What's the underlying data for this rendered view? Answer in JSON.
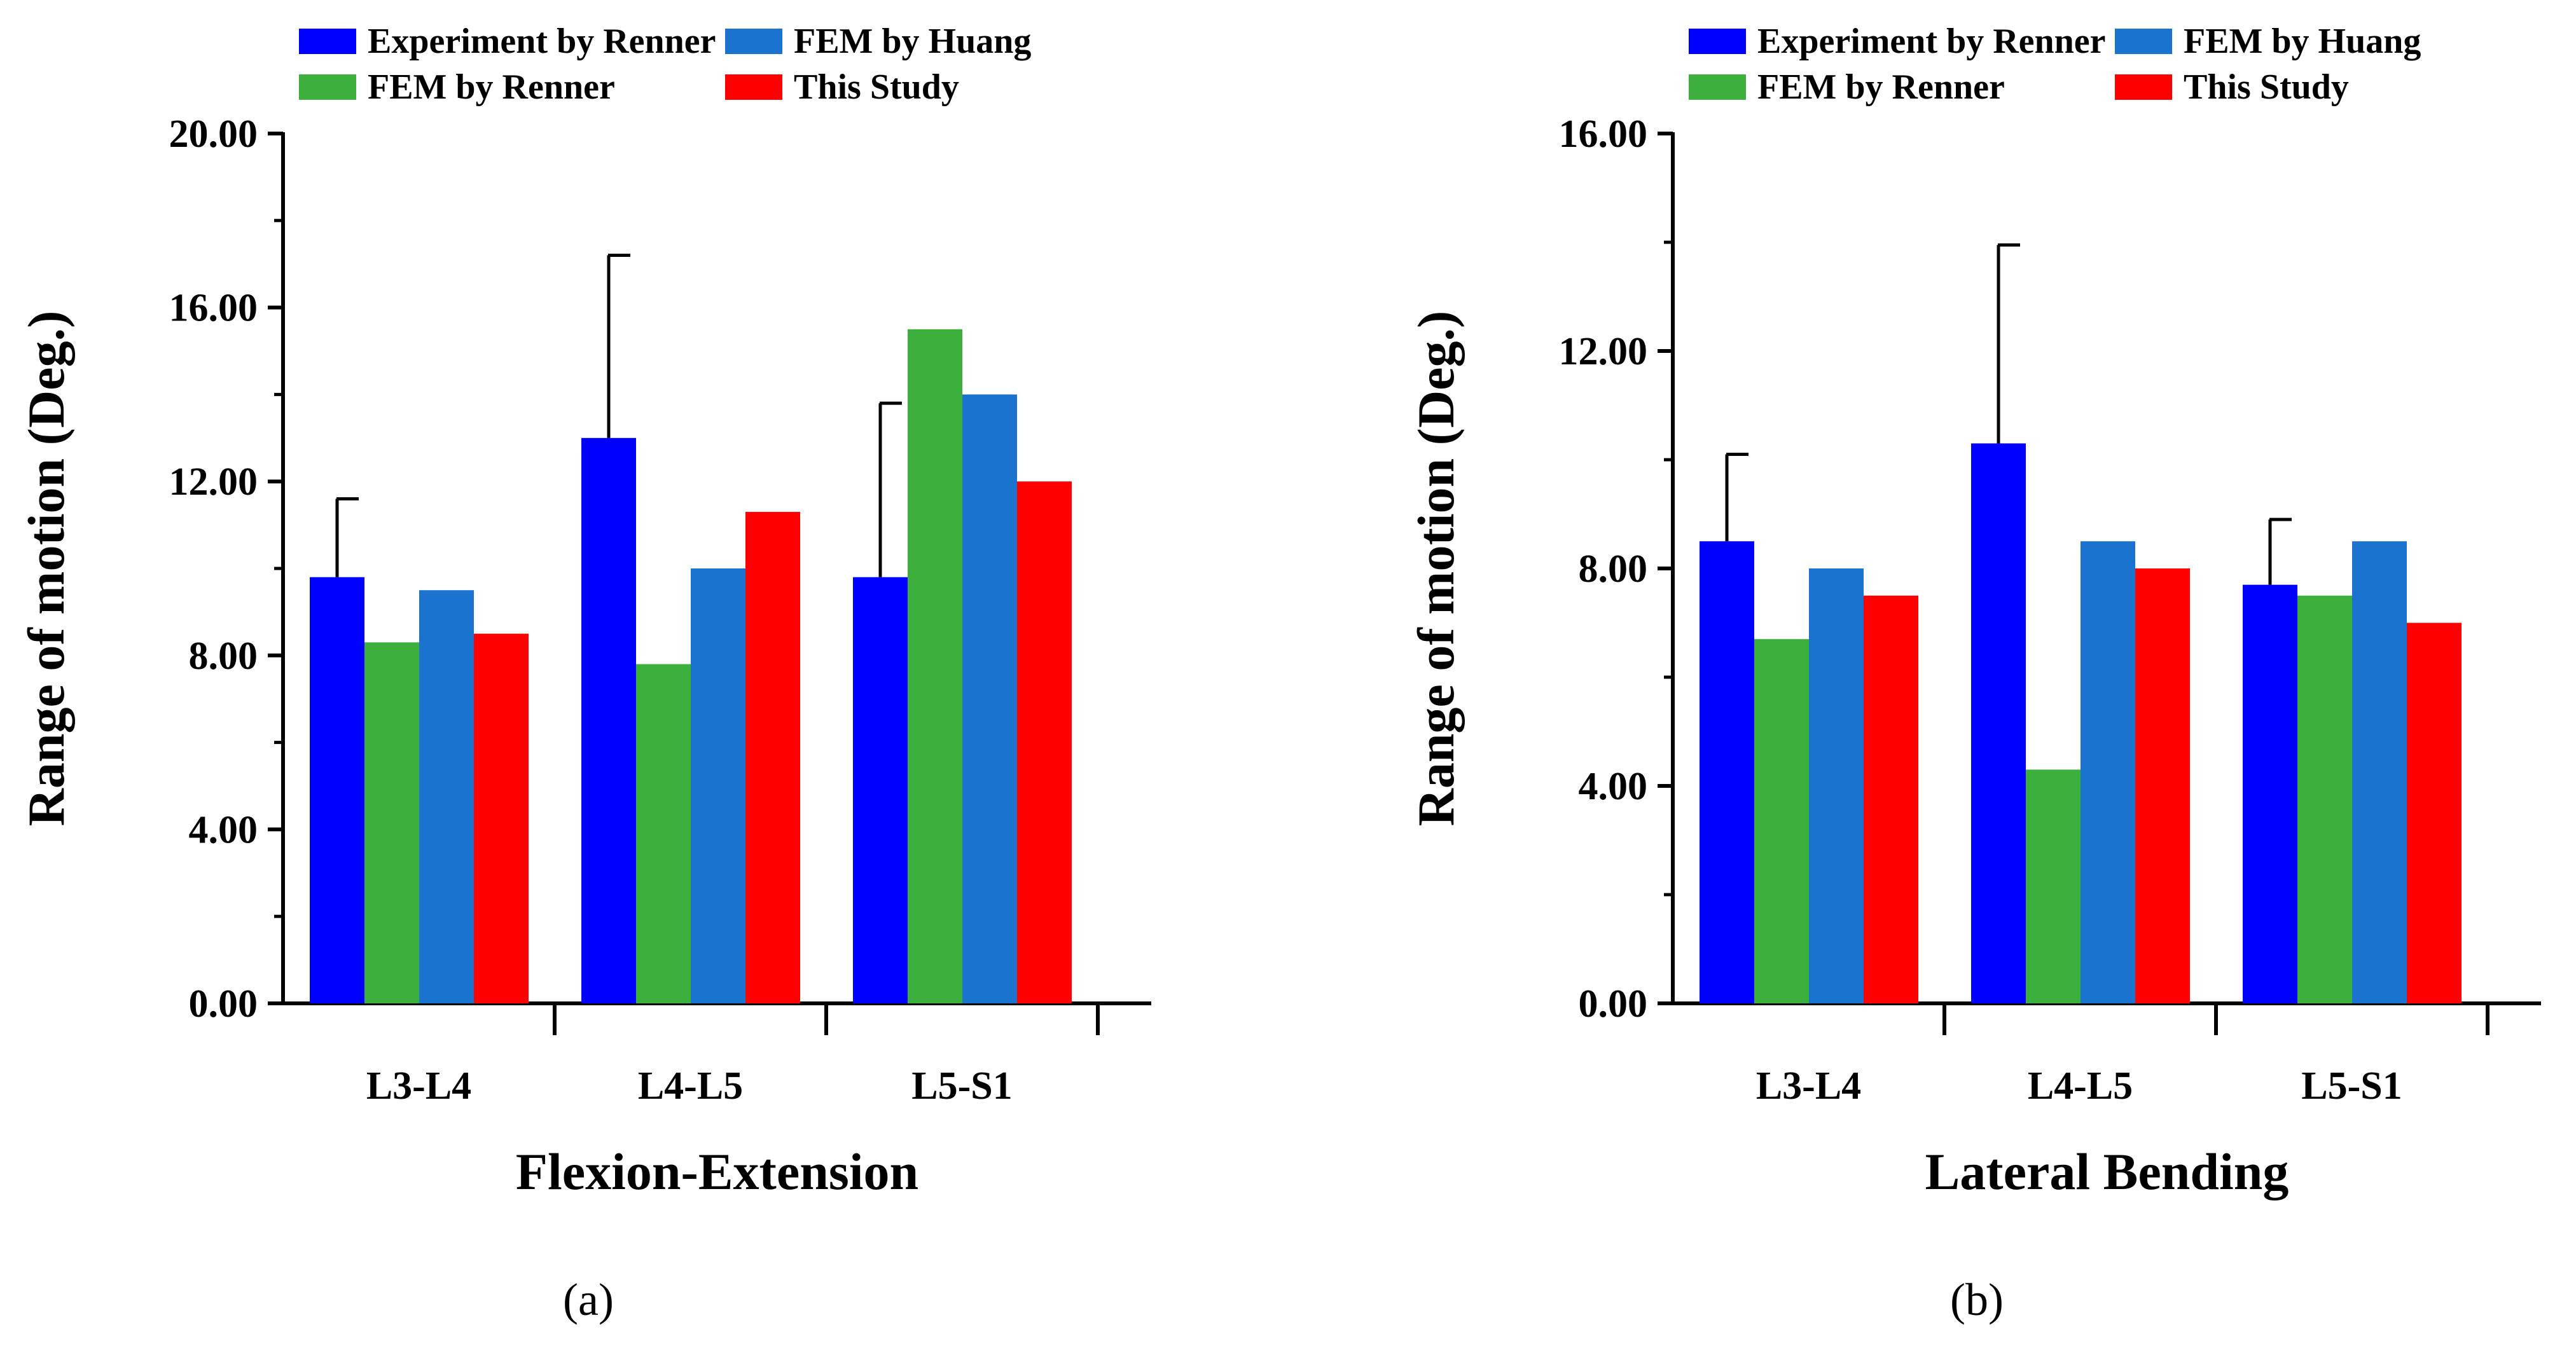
{
  "chart_data": [
    {
      "type": "bar",
      "panel_label": "(a)",
      "xlabel": "Flexion-Extension",
      "ylabel": "Range of motion (Deg.)",
      "categories": [
        "L3-L4",
        "L4-L5",
        "L5-S1"
      ],
      "ylim": [
        0,
        20
      ],
      "yticks": [
        "0.00",
        "4.00",
        "8.00",
        "12.00",
        "16.00",
        "20.00"
      ],
      "grid": false,
      "legend_position": "top",
      "series": [
        {
          "name": "Experiment by Renner",
          "color": "#0000FF",
          "values": [
            9.8,
            13.0,
            9.8
          ],
          "error_plus": [
            1.8,
            4.2,
            4.0
          ]
        },
        {
          "name": "FEM by Renner",
          "color": "#3DAF3D",
          "values": [
            8.3,
            7.8,
            15.5
          ]
        },
        {
          "name": "FEM by Huang",
          "color": "#1A73CF",
          "values": [
            9.5,
            10.0,
            14.0
          ]
        },
        {
          "name": "This Study",
          "color": "#FF0000",
          "values": [
            8.5,
            11.3,
            12.0
          ]
        }
      ]
    },
    {
      "type": "bar",
      "panel_label": "(b)",
      "xlabel": "Lateral Bending",
      "ylabel": "Range of motion (Deg.)",
      "categories": [
        "L3-L4",
        "L4-L5",
        "L5-S1"
      ],
      "ylim": [
        0,
        16
      ],
      "yticks": [
        "0.00",
        "4.00",
        "8.00",
        "12.00",
        "16.00"
      ],
      "grid": false,
      "legend_position": "top",
      "series": [
        {
          "name": "Experiment by Renner",
          "color": "#0000FF",
          "values": [
            8.5,
            10.3,
            7.7
          ],
          "error_plus": [
            1.6,
            3.65,
            1.2
          ]
        },
        {
          "name": "FEM by Renner",
          "color": "#3DAF3D",
          "values": [
            6.7,
            4.3,
            7.5
          ]
        },
        {
          "name": "FEM by Huang",
          "color": "#1A73CF",
          "values": [
            8.0,
            8.5,
            8.5
          ]
        },
        {
          "name": "This Study",
          "color": "#FF0000",
          "values": [
            7.5,
            8.0,
            7.0
          ]
        }
      ]
    }
  ]
}
